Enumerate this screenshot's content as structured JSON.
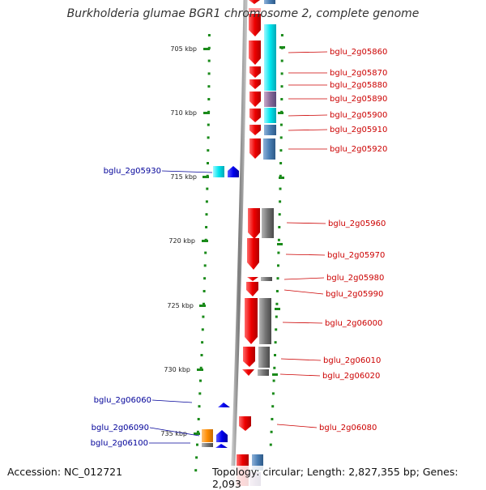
{
  "title": "Burkholderia glumae BGR1 chromosome 2, complete genome",
  "accession": "Accession: NC_012721",
  "topology": "Topology: circular; Length: 2,827,355 bp; Genes: 2,093",
  "scale": [
    "705 kbp",
    "710 kbp",
    "715 kbp",
    "720 kbp",
    "725 kbp",
    "730 kbp",
    "735 kbp"
  ],
  "genes_right": [
    "bglu_2g05860",
    "bglu_2g05870",
    "bglu_2g05880",
    "bglu_2g05890",
    "bglu_2g05900",
    "bglu_2g05910",
    "bglu_2g05920",
    "bglu_2g05960",
    "bglu_2g05970",
    "bglu_2g05980",
    "bglu_2g05990",
    "bglu_2g06000",
    "bglu_2g06010",
    "bglu_2g06020",
    "bglu_2g06080"
  ],
  "genes_left": [
    "bglu_2g05930",
    "bglu_2g06060",
    "bglu_2g06090",
    "bglu_2g06100"
  ],
  "colors": {
    "forward_gene": "#ee0000",
    "reverse_gene": "#0000ee",
    "cog_cyan": "#00e5ee",
    "cog_steel": "#4a7fb5",
    "cog_grey": "#777777",
    "cog_orange": "#ff8c00",
    "tick_green": "#1a8a1a",
    "label_red": "#cc0000",
    "label_blue": "#000099"
  }
}
